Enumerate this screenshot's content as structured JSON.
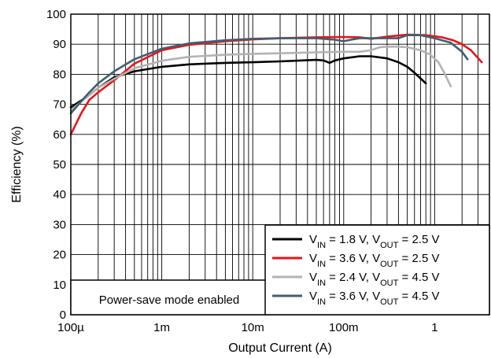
{
  "chart_data": {
    "type": "line",
    "xlabel": "Output Current (A)",
    "ylabel": "Efficiency (%)",
    "x_scale": "log",
    "xlim": [
      0.0001,
      4.0
    ],
    "ylim": [
      0,
      100
    ],
    "x_ticks": [
      {
        "value": 0.0001,
        "label": "100µ"
      },
      {
        "value": 0.001,
        "label": "1m"
      },
      {
        "value": 0.01,
        "label": "10m"
      },
      {
        "value": 0.1,
        "label": "100m"
      },
      {
        "value": 1,
        "label": "1"
      }
    ],
    "y_ticks": [
      0,
      10,
      20,
      30,
      40,
      50,
      60,
      70,
      80,
      90,
      100
    ],
    "grid": true,
    "legend_position": "bottom-right",
    "annotation": "Power-save mode enabled",
    "series": [
      {
        "name": "VIN = 1.8 V, VOUT = 2.5 V",
        "label_parts": {
          "vin_sub": "IN",
          "vin_val": " = 1.8 V, V",
          "vout_sub": "OUT",
          "vout_val": " = 2.5 V"
        },
        "color": "#000000",
        "x": [
          0.0001,
          0.00015,
          0.0002,
          0.0003,
          0.0005,
          0.001,
          0.002,
          0.005,
          0.01,
          0.02,
          0.05,
          0.06,
          0.07,
          0.08,
          0.1,
          0.15,
          0.2,
          0.3,
          0.4,
          0.5,
          0.6,
          0.8
        ],
        "y": [
          69,
          72.5,
          75.5,
          79,
          81,
          82.5,
          83.3,
          83.8,
          84,
          84.3,
          84.8,
          84.6,
          83.8,
          84.6,
          85.3,
          86,
          86,
          85.3,
          84,
          82.5,
          80.5,
          77
        ]
      },
      {
        "name": "VIN = 3.6 V, VOUT = 2.5 V",
        "label_parts": {
          "vin_sub": "IN",
          "vin_val": " = 3.6 V, V",
          "vout_sub": "OUT",
          "vout_val": " = 2.5 V"
        },
        "color": "#e8141a",
        "x": [
          0.0001,
          0.00013,
          0.00016,
          0.0002,
          0.0003,
          0.0005,
          0.001,
          0.002,
          0.005,
          0.01,
          0.02,
          0.05,
          0.1,
          0.15,
          0.2,
          0.3,
          0.5,
          0.8,
          1.2,
          1.6,
          2.0,
          2.5,
          3.3
        ],
        "y": [
          60,
          67,
          71.5,
          74,
          78,
          83.5,
          88,
          89.8,
          91,
          91.6,
          92,
          92.3,
          92.4,
          92.3,
          91.8,
          92.5,
          93.2,
          93,
          92.3,
          91.3,
          90,
          88,
          84
        ]
      },
      {
        "name": "VIN = 2.4 V, VOUT = 4.5 V",
        "label_parts": {
          "vin_sub": "IN",
          "vin_val": " = 2.4 V, V",
          "vout_sub": "OUT",
          "vout_val": " = 4.5 V"
        },
        "color": "#b3b3b3",
        "x": [
          0.0001,
          0.00015,
          0.0002,
          0.0003,
          0.0005,
          0.001,
          0.002,
          0.005,
          0.01,
          0.02,
          0.05,
          0.1,
          0.15,
          0.2,
          0.25,
          0.3,
          0.4,
          0.5,
          0.7,
          0.9,
          1.1,
          1.3,
          1.5
        ],
        "y": [
          68,
          72.5,
          75.5,
          78.5,
          82,
          84.5,
          85.8,
          86.5,
          86.8,
          87,
          87.3,
          87.5,
          87.5,
          88,
          89,
          89.2,
          89.2,
          89,
          88,
          86.5,
          84,
          80,
          76
        ]
      },
      {
        "name": "VIN = 3.6 V, VOUT = 4.5 V",
        "label_parts": {
          "vin_sub": "IN",
          "vin_val": " = 3.6 V, V",
          "vout_sub": "OUT",
          "vout_val": " = 4.5 V"
        },
        "color": "#3e5f73",
        "x": [
          0.0001,
          0.00013,
          0.00016,
          0.0002,
          0.0003,
          0.0005,
          0.001,
          0.002,
          0.005,
          0.01,
          0.02,
          0.05,
          0.08,
          0.1,
          0.12,
          0.15,
          0.2,
          0.3,
          0.4,
          0.5,
          0.7,
          1.0,
          1.5,
          2.0,
          2.3
        ],
        "y": [
          67,
          71,
          74,
          77,
          81,
          85,
          88.5,
          90.3,
          91.3,
          91.8,
          92,
          92,
          91.5,
          91,
          91.5,
          92,
          92,
          92,
          92,
          93,
          93,
          92,
          90.5,
          87.5,
          85
        ]
      }
    ]
  }
}
